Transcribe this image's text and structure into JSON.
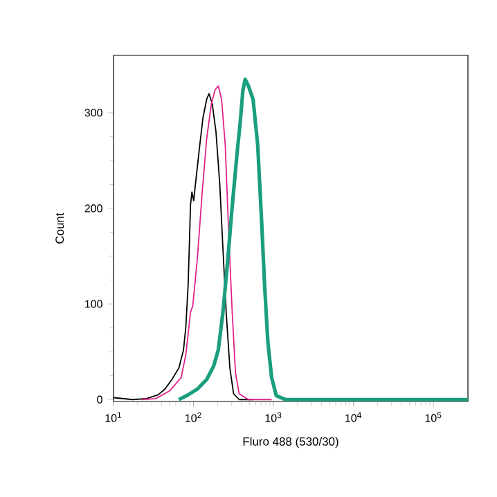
{
  "chart_data": {
    "type": "line",
    "xlabel": "Fluro 488 (530/30)",
    "ylabel": "Count",
    "log": "x",
    "grid": false,
    "marker": "none",
    "line_style": "solid",
    "xlim": [
      10,
      270000
    ],
    "ylim": [
      -2,
      360
    ],
    "xticks": [
      {
        "value": 10,
        "label": "10$^{1}$"
      },
      {
        "value": 100,
        "label": "10$^{2}$"
      },
      {
        "value": 1000,
        "label": "10$^{3}$"
      },
      {
        "value": 10000,
        "label": "10$^{4}$"
      },
      {
        "value": 100000,
        "label": "10$^{5}$"
      }
    ],
    "yticks": [
      0,
      100,
      200,
      300
    ],
    "series": [
      {
        "color": "#000000",
        "x": [
          10,
          17.3,
          25.8,
          36.1,
          44,
          53.7,
          65.6,
          75,
          80.2,
          85.7,
          89.3,
          91.6,
          95.5,
          100.7,
          104.7,
          119.7,
          131.5,
          146.2,
          156.3,
          171.8,
          191,
          212.8,
          233.3,
          256.4,
          285.1,
          317,
          372.4,
          555.9
        ],
        "values": [
          2,
          0,
          1,
          5,
          11,
          21,
          33,
          52,
          76,
          120,
          169,
          203,
          217,
          208,
          222,
          266,
          295,
          314,
          320,
          309,
          280,
          226,
          158,
          91,
          33,
          6,
          0,
          0
        ]
      },
      {
        "color": "#e0218a",
        "x": [
          22.6,
          33.7,
          50.2,
          70.1,
          80.2,
          91.6,
          97.9,
          111.9,
          127.9,
          146.2,
          167.1,
          186.2,
          204.2,
          224.4,
          249.5,
          277.3,
          304.8,
          335,
          372.4,
          486.4,
          948.4
        ],
        "values": [
          0,
          1,
          9,
          23,
          47,
          91,
          98,
          148,
          215,
          273,
          309,
          324,
          328,
          314,
          266,
          168,
          91,
          28,
          6,
          0,
          0
        ]
      },
      {
        "color": "#1a9e7f",
        "x": [
          65.6,
          85.7,
          111.9,
          146.2,
          178.6,
          204.2,
          233.3,
          266.7,
          304.8,
          348.3,
          382.8,
          414,
          442.6,
          486.4,
          555.9,
          635.3,
          706.3,
          776.2,
          851.1,
          948.4,
          1084,
          1416,
          4699,
          25820,
          270000
        ],
        "values": [
          0,
          5,
          11,
          21,
          35,
          52,
          91,
          144,
          202,
          255,
          289,
          323,
          335,
          328,
          314,
          266,
          191,
          118,
          60,
          23,
          4,
          0,
          0,
          0,
          0
        ]
      }
    ]
  }
}
